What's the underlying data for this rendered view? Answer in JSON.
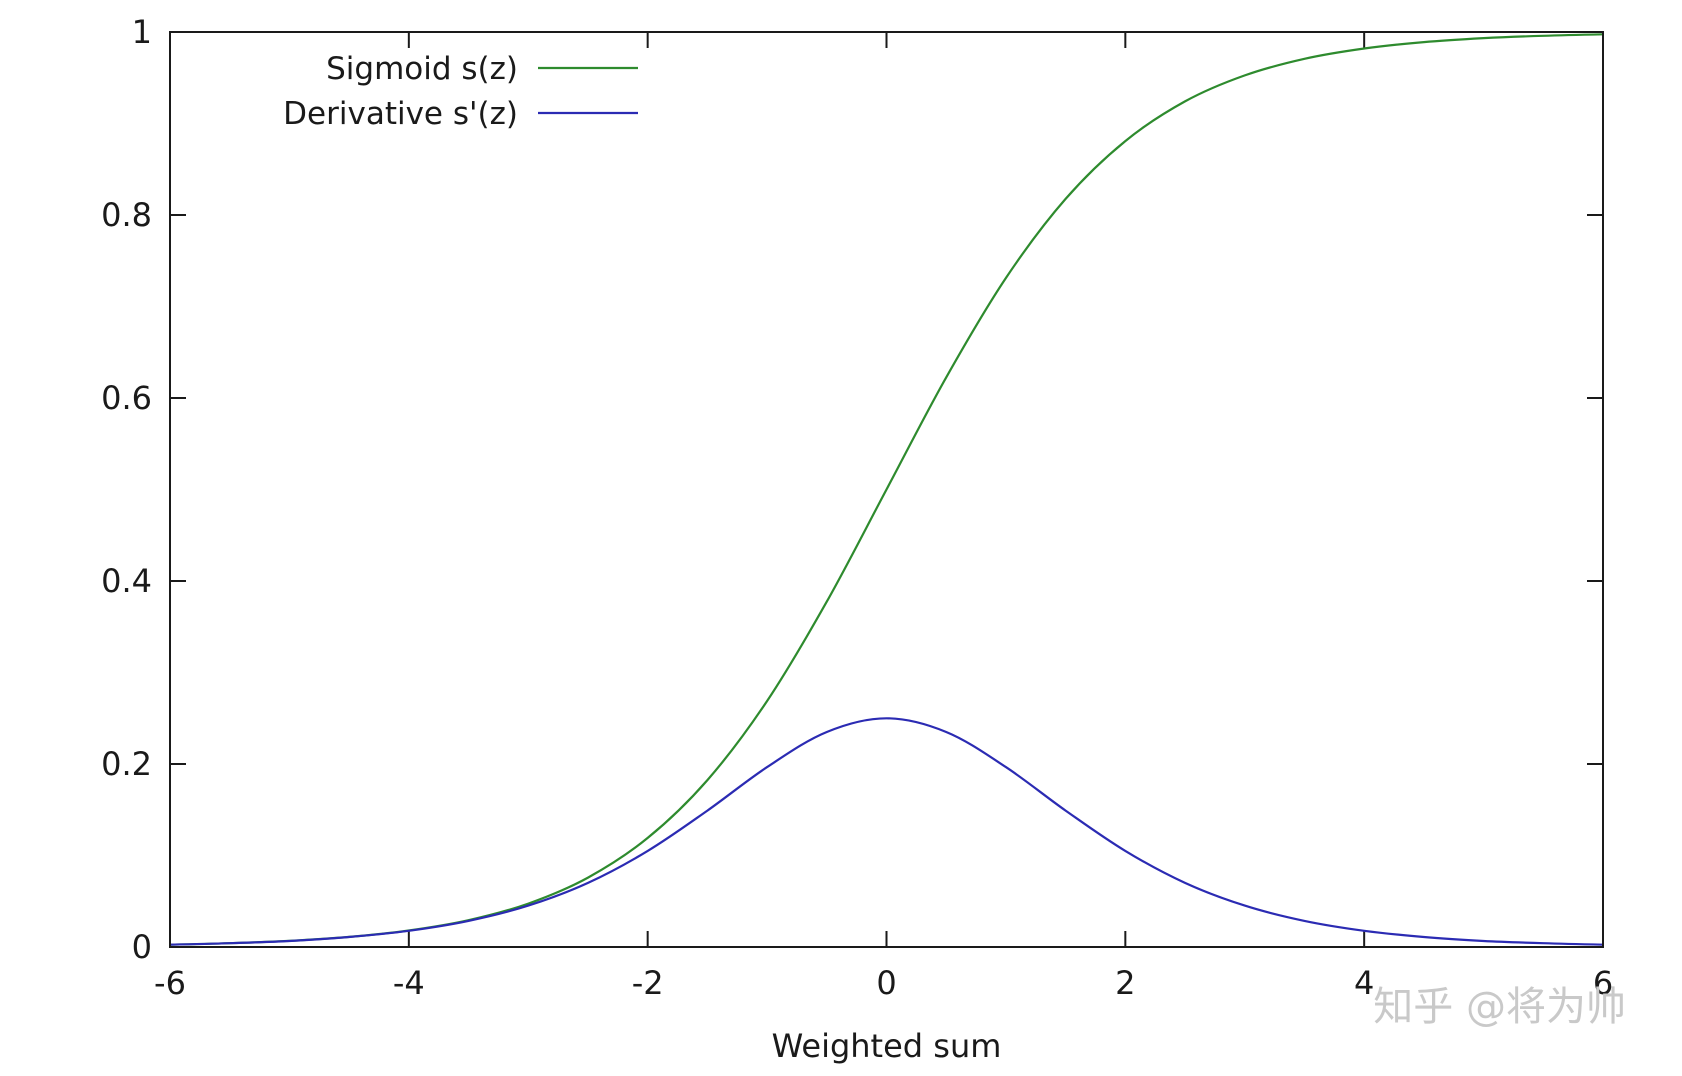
{
  "chart_data": {
    "type": "line",
    "title": "",
    "xlabel": "Weighted sum",
    "ylabel": "",
    "xlim": [
      -6,
      6
    ],
    "ylim": [
      0,
      1
    ],
    "x_ticks": [
      "-6",
      "-4",
      "-2",
      "0",
      "2",
      "4",
      "6"
    ],
    "y_ticks": [
      "0",
      "0.2",
      "0.4",
      "0.6",
      "0.8",
      "1"
    ],
    "x": [
      -6,
      -5.5,
      -5,
      -4.5,
      -4,
      -3.5,
      -3,
      -2.5,
      -2,
      -1.5,
      -1,
      -0.5,
      0,
      0.5,
      1,
      1.5,
      2,
      2.5,
      3,
      3.5,
      4,
      4.5,
      5,
      5.5,
      6
    ],
    "series": [
      {
        "name": "Sigmoid s(z)",
        "color": "#2e8b2e",
        "values": [
          0.0025,
          0.0041,
          0.0067,
          0.011,
          0.018,
          0.0293,
          0.0474,
          0.0759,
          0.1192,
          0.1824,
          0.2689,
          0.3775,
          0.5,
          0.6225,
          0.7311,
          0.8176,
          0.8808,
          0.9241,
          0.9526,
          0.9707,
          0.982,
          0.989,
          0.9933,
          0.9959,
          0.9975
        ]
      },
      {
        "name": "Derivative s'(z)",
        "color": "#2b2bb3",
        "values": [
          0.0025,
          0.0041,
          0.0066,
          0.0109,
          0.0177,
          0.0285,
          0.0452,
          0.0701,
          0.105,
          0.1491,
          0.1966,
          0.235,
          0.25,
          0.235,
          0.1966,
          0.1491,
          0.105,
          0.0701,
          0.0452,
          0.0285,
          0.0177,
          0.0109,
          0.0066,
          0.0041,
          0.0025
        ]
      }
    ],
    "grid": false,
    "legend_position": "top-left"
  },
  "watermark": "知乎 @将为帅"
}
